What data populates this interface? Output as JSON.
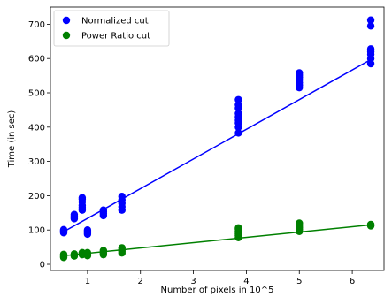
{
  "chart_data": {
    "type": "scatter",
    "title": "",
    "xlabel": "Number of pixels in 10^5",
    "ylabel": "Time  (in sec)",
    "xlim": [
      0.3,
      6.6
    ],
    "ylim": [
      -18,
      750
    ],
    "xticks": [
      "1",
      "2",
      "3",
      "4",
      "5",
      "6"
    ],
    "xtick_values": [
      1,
      2,
      3,
      4,
      5,
      6
    ],
    "yticks": [
      "0",
      "100",
      "200",
      "300",
      "400",
      "500",
      "600",
      "700"
    ],
    "ytick_values": [
      0,
      100,
      200,
      300,
      400,
      500,
      600,
      700
    ],
    "grid": false,
    "legend": "top-left",
    "series": [
      {
        "name": "Normalized cut",
        "color": "#0000ff",
        "points": [
          [
            0.55,
            92
          ],
          [
            0.55,
            96
          ],
          [
            0.55,
            98
          ],
          [
            0.55,
            101
          ],
          [
            0.75,
            133
          ],
          [
            0.75,
            137
          ],
          [
            0.75,
            141
          ],
          [
            0.75,
            145
          ],
          [
            0.9,
            158
          ],
          [
            0.9,
            165
          ],
          [
            0.9,
            172
          ],
          [
            0.9,
            182
          ],
          [
            0.9,
            190
          ],
          [
            0.9,
            194
          ],
          [
            1.0,
            88
          ],
          [
            1.0,
            92
          ],
          [
            1.0,
            96
          ],
          [
            1.0,
            100
          ],
          [
            1.3,
            142
          ],
          [
            1.3,
            148
          ],
          [
            1.3,
            153
          ],
          [
            1.3,
            158
          ],
          [
            1.65,
            158
          ],
          [
            1.65,
            168
          ],
          [
            1.65,
            178
          ],
          [
            1.65,
            188
          ],
          [
            1.65,
            198
          ],
          [
            3.85,
            383
          ],
          [
            3.85,
            400
          ],
          [
            3.85,
            412
          ],
          [
            3.85,
            420
          ],
          [
            3.85,
            430
          ],
          [
            3.85,
            440
          ],
          [
            3.85,
            455
          ],
          [
            3.85,
            465
          ],
          [
            3.85,
            480
          ],
          [
            5.0,
            515
          ],
          [
            5.0,
            522
          ],
          [
            5.0,
            530
          ],
          [
            5.0,
            538
          ],
          [
            5.0,
            545
          ],
          [
            5.0,
            552
          ],
          [
            5.0,
            558
          ],
          [
            6.35,
            585
          ],
          [
            6.35,
            600
          ],
          [
            6.35,
            612
          ],
          [
            6.35,
            620
          ],
          [
            6.35,
            628
          ],
          [
            6.35,
            695
          ],
          [
            6.35,
            712
          ]
        ],
        "fit": [
          [
            0.55,
            95
          ],
          [
            6.35,
            597
          ]
        ]
      },
      {
        "name": "Power Ratio cut",
        "color": "#008000",
        "points": [
          [
            0.55,
            20
          ],
          [
            0.55,
            23
          ],
          [
            0.55,
            26
          ],
          [
            0.55,
            29
          ],
          [
            0.75,
            24
          ],
          [
            0.75,
            27
          ],
          [
            0.75,
            30
          ],
          [
            0.9,
            28
          ],
          [
            0.9,
            31
          ],
          [
            0.9,
            34
          ],
          [
            1.0,
            25
          ],
          [
            1.0,
            28
          ],
          [
            1.0,
            31
          ],
          [
            1.0,
            34
          ],
          [
            1.3,
            28
          ],
          [
            1.3,
            32
          ],
          [
            1.3,
            36
          ],
          [
            1.3,
            40
          ],
          [
            1.65,
            33
          ],
          [
            1.65,
            38
          ],
          [
            1.65,
            43
          ],
          [
            1.65,
            48
          ],
          [
            3.85,
            78
          ],
          [
            3.85,
            84
          ],
          [
            3.85,
            90
          ],
          [
            3.85,
            96
          ],
          [
            3.85,
            102
          ],
          [
            3.85,
            106
          ],
          [
            5.0,
            96
          ],
          [
            5.0,
            102
          ],
          [
            5.0,
            108
          ],
          [
            5.0,
            114
          ],
          [
            5.0,
            120
          ],
          [
            6.35,
            112
          ],
          [
            6.35,
            114
          ],
          [
            6.35,
            116
          ]
        ],
        "fit": [
          [
            0.55,
            25
          ],
          [
            6.35,
            115
          ]
        ]
      }
    ]
  }
}
